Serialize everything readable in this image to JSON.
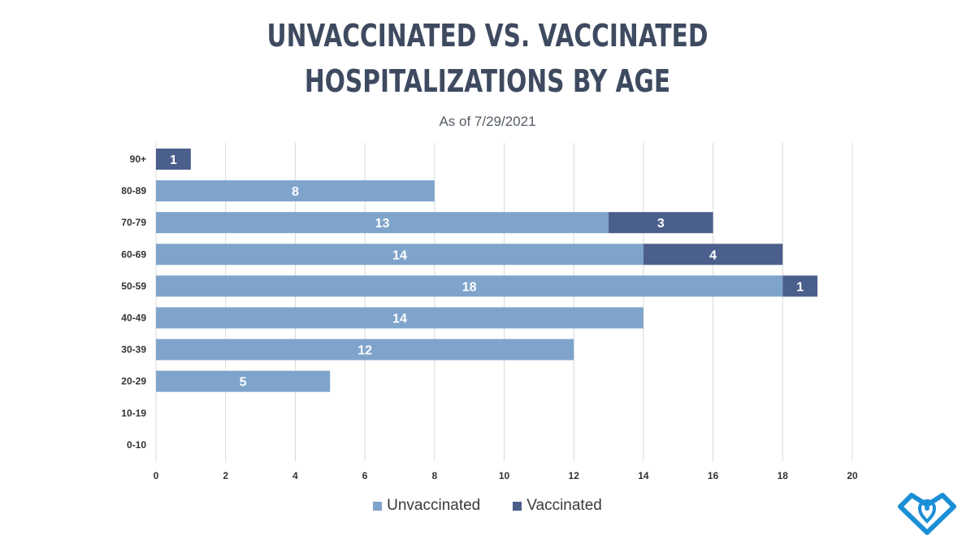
{
  "chart_data": {
    "type": "bar",
    "orientation": "horizontal",
    "stacked": true,
    "title_lines": [
      "UNVACCINATED VS. VACCINATED",
      "HOSPITALIZATIONS BY AGE"
    ],
    "subtitle": "As of 7/29/2021",
    "categories": [
      "90+",
      "80-89",
      "70-79",
      "60-69",
      "50-59",
      "40-49",
      "30-39",
      "20-29",
      "10-19",
      "0-10"
    ],
    "series": [
      {
        "name": "Unvaccinated",
        "color": "#7ea4cb",
        "values": [
          0,
          8,
          13,
          14,
          18,
          14,
          12,
          5,
          0,
          0
        ]
      },
      {
        "name": "Vaccinated",
        "color": "#4b5f8c",
        "values": [
          1,
          0,
          3,
          4,
          1,
          0,
          0,
          0,
          0,
          0
        ]
      }
    ],
    "xlim": [
      0,
      20
    ],
    "xticks": [
      0,
      2,
      4,
      6,
      8,
      10,
      12,
      14,
      16,
      18,
      20
    ],
    "grid": "vertical",
    "legend_position": "bottom"
  },
  "logo": {
    "color": "#1b8fd6",
    "icon": "heart-location-logo-icon"
  }
}
